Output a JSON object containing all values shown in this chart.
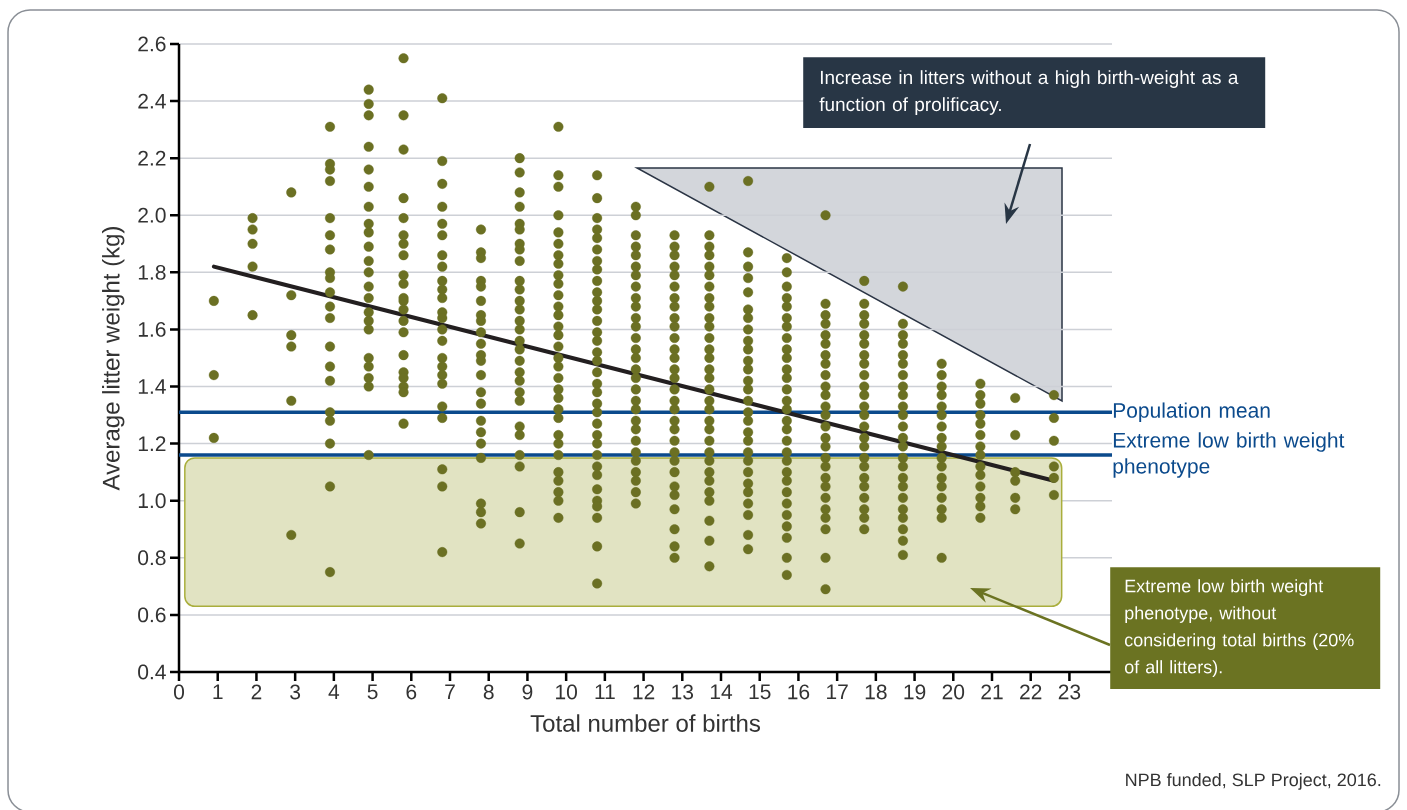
{
  "chart_data": {
    "type": "scatter",
    "xlabel": "Total number of births",
    "ylabel": "Average litter weight (kg)",
    "xlim": [
      0,
      24.1
    ],
    "ylim": [
      0.4,
      2.6
    ],
    "xticks": [
      0,
      1,
      2,
      3,
      4,
      5,
      6,
      7,
      8,
      9,
      10,
      11,
      12,
      13,
      14,
      15,
      16,
      17,
      18,
      19,
      20,
      21,
      22,
      23
    ],
    "yticks": [
      0.4,
      0.6,
      0.8,
      {
        "value": 1,
        "label": "1.0"
      },
      1.2,
      1.4,
      1.6,
      1.8,
      {
        "value": 2,
        "label": "2.0"
      },
      2.2,
      2.4,
      2.6
    ],
    "grid": "y",
    "ref_lines": [
      {
        "axis": "y",
        "value": 1.31,
        "label": "Population mean",
        "color": "#0b4a8c"
      },
      {
        "axis": "y",
        "value": 1.16,
        "label": "Extreme low birth weight phenotype",
        "color": "#0b4a8c"
      }
    ],
    "bands": [
      {
        "axis": "y",
        "from": 0.63,
        "to": 1.15,
        "color": "#e1e3c2"
      }
    ],
    "annotations": [
      "Increase in litters without a high birth-weight as a function of prolificacy.",
      "Extreme low birth weight phenotype, without considering total births (20% of all litters).",
      "NPB funded, SLP Project, 2016."
    ],
    "series": [
      {
        "type": "scatter",
        "marker": "circle",
        "color": "#6b7023",
        "x": [
          0.9,
          0.9,
          0.9,
          1.9,
          1.9,
          1.9,
          1.9,
          1.9,
          2.9,
          2.9,
          2.9,
          2.9,
          2.9,
          2.9,
          3.9,
          3.9,
          3.9,
          3.9,
          3.9,
          3.9,
          3.9,
          3.9,
          3.9,
          3.9,
          3.9,
          3.9,
          3.9,
          3.9,
          3.9,
          3.9,
          3.9,
          3.9,
          3.9,
          3.9,
          4.9,
          4.9,
          4.9,
          4.9,
          4.9,
          4.9,
          4.9,
          4.9,
          4.9,
          4.9,
          4.9,
          4.9,
          4.9,
          4.9,
          4.9,
          4.9,
          4.9,
          4.9,
          4.9,
          4.9,
          4.9,
          4.9,
          5.8,
          5.8,
          5.8,
          5.8,
          5.8,
          5.8,
          5.8,
          5.8,
          5.8,
          5.8,
          5.8,
          5.8,
          5.8,
          5.8,
          5.8,
          5.8,
          5.8,
          5.8,
          5.8,
          5.8,
          5.8,
          6.8,
          6.8,
          6.8,
          6.8,
          6.8,
          6.8,
          6.8,
          6.8,
          6.8,
          6.8,
          6.8,
          6.8,
          6.8,
          6.8,
          6.8,
          6.8,
          6.8,
          6.8,
          6.8,
          6.8,
          6.8,
          6.8,
          6.8,
          6.8,
          7.8,
          7.8,
          7.8,
          7.8,
          7.8,
          7.8,
          7.8,
          7.8,
          7.8,
          7.8,
          7.8,
          7.8,
          7.8,
          7.8,
          7.8,
          7.8,
          7.8,
          7.8,
          7.8,
          7.8,
          7.8,
          7.8,
          8.8,
          8.8,
          8.8,
          8.8,
          8.8,
          8.8,
          8.8,
          8.8,
          8.8,
          8.8,
          8.8,
          8.8,
          8.8,
          8.8,
          8.8,
          8.8,
          8.8,
          8.8,
          8.8,
          8.8,
          8.8,
          8.8,
          8.8,
          8.8,
          8.8,
          8.8,
          8.8,
          8.8,
          9.8,
          9.8,
          9.8,
          9.8,
          9.8,
          9.8,
          9.8,
          9.8,
          9.8,
          9.8,
          9.8,
          9.8,
          9.8,
          9.8,
          9.8,
          9.8,
          9.8,
          9.8,
          9.8,
          9.8,
          9.8,
          9.8,
          9.8,
          9.8,
          9.8,
          9.8,
          9.8,
          9.8,
          9.8,
          9.8,
          9.8,
          10.8,
          10.8,
          10.8,
          10.8,
          10.8,
          10.8,
          10.8,
          10.8,
          10.8,
          10.8,
          10.8,
          10.8,
          10.8,
          10.8,
          10.8,
          10.8,
          10.8,
          10.8,
          10.8,
          10.8,
          10.8,
          10.8,
          10.8,
          10.8,
          10.8,
          10.8,
          10.8,
          10.8,
          10.8,
          10.8,
          10.8,
          10.8,
          10.8,
          10.8,
          11.8,
          11.8,
          11.8,
          11.8,
          11.8,
          11.8,
          11.8,
          11.8,
          11.8,
          11.8,
          11.8,
          11.8,
          11.8,
          11.8,
          11.8,
          11.8,
          11.8,
          11.8,
          11.8,
          11.8,
          11.8,
          11.8,
          11.8,
          11.8,
          11.8,
          11.8,
          11.8,
          11.8,
          11.8,
          12.8,
          12.8,
          12.8,
          12.8,
          12.8,
          12.8,
          12.8,
          12.8,
          12.8,
          12.8,
          12.8,
          12.8,
          12.8,
          12.8,
          12.8,
          12.8,
          12.8,
          12.8,
          12.8,
          12.8,
          12.8,
          12.8,
          12.8,
          12.8,
          12.8,
          12.8,
          12.8,
          12.8,
          12.8,
          12.8,
          13.7,
          13.7,
          13.7,
          13.7,
          13.7,
          13.7,
          13.7,
          13.7,
          13.7,
          13.7,
          13.7,
          13.7,
          13.7,
          13.7,
          13.7,
          13.7,
          13.7,
          13.7,
          13.7,
          13.7,
          13.7,
          13.7,
          13.7,
          13.7,
          13.7,
          13.7,
          13.7,
          13.7,
          13.7,
          13.7,
          13.7,
          14.7,
          14.7,
          14.7,
          14.7,
          14.7,
          14.7,
          14.7,
          14.7,
          14.7,
          14.7,
          14.7,
          14.7,
          14.7,
          14.7,
          14.7,
          14.7,
          14.7,
          14.7,
          14.7,
          14.7,
          14.7,
          14.7,
          14.7,
          14.7,
          14.7,
          14.7,
          14.7,
          14.7,
          15.7,
          15.7,
          15.7,
          15.7,
          15.7,
          15.7,
          15.7,
          15.7,
          15.7,
          15.7,
          15.7,
          15.7,
          15.7,
          15.7,
          15.7,
          15.7,
          15.7,
          15.7,
          15.7,
          15.7,
          15.7,
          15.7,
          15.7,
          15.7,
          15.7,
          15.7,
          15.7,
          15.7,
          15.7,
          16.7,
          16.7,
          16.7,
          16.7,
          16.7,
          16.7,
          16.7,
          16.7,
          16.7,
          16.7,
          16.7,
          16.7,
          16.7,
          16.7,
          16.7,
          16.7,
          16.7,
          16.7,
          16.7,
          16.7,
          16.7,
          16.7,
          16.7,
          16.7,
          16.7,
          16.7,
          17.7,
          17.7,
          17.7,
          17.7,
          17.7,
          17.7,
          17.7,
          17.7,
          17.7,
          17.7,
          17.7,
          17.7,
          17.7,
          17.7,
          17.7,
          17.7,
          17.7,
          17.7,
          17.7,
          17.7,
          17.7,
          17.7,
          17.7,
          17.7,
          18.7,
          18.7,
          18.7,
          18.7,
          18.7,
          18.7,
          18.7,
          18.7,
          18.7,
          18.7,
          18.7,
          18.7,
          18.7,
          18.7,
          18.7,
          18.7,
          18.7,
          18.7,
          18.7,
          18.7,
          18.7,
          18.7,
          18.7,
          18.7,
          19.7,
          19.7,
          19.7,
          19.7,
          19.7,
          19.7,
          19.7,
          19.7,
          19.7,
          19.7,
          19.7,
          19.7,
          19.7,
          19.7,
          19.7,
          19.7,
          19.7,
          20.7,
          20.7,
          20.7,
          20.7,
          20.7,
          20.7,
          20.7,
          20.7,
          20.7,
          20.7,
          20.7,
          20.7,
          20.7,
          20.7,
          21.6,
          21.6,
          21.6,
          21.6,
          21.6,
          21.6,
          22.6,
          22.6,
          22.6,
          22.6,
          22.6,
          22.6
        ],
        "values": [
          1.7,
          1.44,
          1.22,
          1.99,
          1.95,
          1.9,
          1.82,
          1.65,
          2.08,
          1.72,
          1.58,
          1.54,
          1.35,
          0.88,
          2.31,
          2.18,
          2.16,
          2.12,
          1.99,
          1.93,
          1.88,
          1.8,
          1.78,
          1.73,
          1.68,
          1.64,
          1.54,
          1.47,
          1.42,
          1.31,
          1.28,
          1.2,
          1.05,
          0.75,
          2.44,
          2.39,
          2.35,
          2.24,
          2.16,
          2.1,
          2.03,
          1.97,
          1.94,
          1.89,
          1.84,
          1.8,
          1.75,
          1.71,
          1.66,
          1.63,
          1.6,
          1.5,
          1.47,
          1.43,
          1.4,
          1.16,
          2.55,
          2.35,
          2.23,
          2.06,
          1.99,
          1.93,
          1.9,
          1.86,
          1.79,
          1.76,
          1.71,
          1.7,
          1.67,
          1.63,
          1.59,
          1.51,
          1.45,
          1.43,
          1.4,
          1.38,
          1.27,
          2.41,
          2.19,
          2.11,
          2.03,
          1.97,
          1.93,
          1.86,
          1.82,
          1.77,
          1.74,
          1.71,
          1.66,
          1.64,
          1.6,
          1.56,
          1.5,
          1.47,
          1.44,
          1.41,
          1.33,
          1.29,
          1.11,
          1.05,
          0.82,
          1.95,
          1.87,
          1.85,
          1.77,
          1.75,
          1.7,
          1.65,
          1.63,
          1.59,
          1.55,
          1.51,
          1.49,
          1.44,
          1.38,
          1.34,
          1.28,
          1.24,
          1.2,
          1.15,
          0.99,
          0.96,
          0.92,
          2.2,
          2.15,
          2.08,
          2.03,
          1.97,
          1.95,
          1.9,
          1.88,
          1.84,
          1.77,
          1.74,
          1.7,
          1.67,
          1.63,
          1.6,
          1.56,
          1.53,
          1.49,
          1.45,
          1.42,
          1.38,
          1.35,
          1.26,
          1.23,
          1.16,
          1.12,
          0.96,
          0.85,
          2.31,
          2.14,
          2.1,
          2.0,
          1.94,
          1.9,
          1.86,
          1.83,
          1.79,
          1.76,
          1.72,
          1.68,
          1.65,
          1.61,
          1.58,
          1.54,
          1.5,
          1.47,
          1.43,
          1.39,
          1.36,
          1.32,
          1.29,
          1.23,
          1.2,
          1.16,
          1.1,
          1.07,
          1.03,
          1.0,
          0.94,
          2.14,
          2.06,
          1.99,
          1.95,
          1.92,
          1.88,
          1.84,
          1.81,
          1.77,
          1.73,
          1.7,
          1.67,
          1.63,
          1.59,
          1.56,
          1.52,
          1.49,
          1.45,
          1.41,
          1.38,
          1.34,
          1.31,
          1.27,
          1.23,
          1.2,
          1.16,
          1.12,
          1.09,
          1.04,
          1.0,
          0.98,
          0.94,
          0.84,
          0.71,
          2.03,
          2.0,
          1.93,
          1.89,
          1.86,
          1.82,
          1.79,
          1.75,
          1.71,
          1.68,
          1.64,
          1.61,
          1.57,
          1.53,
          1.5,
          1.46,
          1.43,
          1.39,
          1.35,
          1.32,
          1.28,
          1.25,
          1.21,
          1.17,
          1.14,
          1.1,
          1.07,
          1.03,
          0.99,
          1.93,
          1.89,
          1.86,
          1.82,
          1.79,
          1.75,
          1.71,
          1.68,
          1.64,
          1.61,
          1.57,
          1.53,
          1.5,
          1.46,
          1.43,
          1.39,
          1.35,
          1.32,
          1.28,
          1.25,
          1.21,
          1.17,
          1.14,
          1.1,
          1.05,
          1.02,
          0.97,
          0.9,
          0.84,
          0.8,
          2.1,
          1.93,
          1.89,
          1.86,
          1.82,
          1.79,
          1.75,
          1.71,
          1.68,
          1.64,
          1.61,
          1.57,
          1.53,
          1.5,
          1.46,
          1.43,
          1.39,
          1.35,
          1.32,
          1.28,
          1.25,
          1.21,
          1.17,
          1.14,
          1.1,
          1.07,
          1.03,
          1.0,
          0.93,
          0.86,
          0.77,
          2.12,
          1.87,
          1.82,
          1.78,
          1.73,
          1.67,
          1.64,
          1.6,
          1.56,
          1.53,
          1.49,
          1.46,
          1.42,
          1.39,
          1.35,
          1.31,
          1.28,
          1.24,
          1.21,
          1.17,
          1.14,
          1.1,
          1.06,
          1.03,
          0.99,
          0.95,
          0.88,
          0.83,
          1.85,
          1.8,
          1.75,
          1.71,
          1.68,
          1.64,
          1.61,
          1.57,
          1.53,
          1.5,
          1.46,
          1.43,
          1.39,
          1.35,
          1.32,
          1.28,
          1.25,
          1.21,
          1.17,
          1.14,
          1.1,
          1.07,
          1.03,
          0.99,
          0.95,
          0.91,
          0.87,
          0.8,
          0.74,
          2.0,
          1.69,
          1.65,
          1.62,
          1.58,
          1.55,
          1.51,
          1.48,
          1.44,
          1.4,
          1.37,
          1.33,
          1.3,
          1.26,
          1.22,
          1.19,
          1.15,
          1.12,
          1.08,
          1.05,
          1.01,
          0.97,
          0.94,
          0.9,
          0.8,
          0.69,
          1.77,
          1.69,
          1.65,
          1.62,
          1.58,
          1.55,
          1.51,
          1.48,
          1.44,
          1.4,
          1.37,
          1.33,
          1.3,
          1.26,
          1.22,
          1.19,
          1.15,
          1.12,
          1.08,
          1.05,
          1.01,
          0.97,
          0.94,
          0.9,
          1.75,
          1.62,
          1.58,
          1.55,
          1.51,
          1.48,
          1.44,
          1.4,
          1.37,
          1.33,
          1.3,
          1.26,
          1.22,
          1.19,
          1.15,
          1.12,
          1.08,
          1.05,
          1.01,
          0.97,
          0.94,
          0.9,
          0.86,
          0.81,
          1.48,
          1.44,
          1.4,
          1.37,
          1.33,
          1.3,
          1.26,
          1.22,
          1.19,
          1.15,
          1.12,
          1.08,
          1.05,
          1.01,
          0.97,
          0.94,
          0.8,
          1.41,
          1.37,
          1.34,
          1.3,
          1.27,
          1.23,
          1.19,
          1.16,
          1.12,
          1.09,
          1.05,
          1.01,
          0.98,
          0.94,
          1.36,
          1.23,
          1.1,
          1.07,
          1.01,
          0.97,
          1.37,
          1.29,
          1.21,
          1.12,
          1.08,
          1.02
        ]
      },
      {
        "type": "line",
        "color": "#231f20",
        "x": [
          0.9,
          22.6
        ],
        "values": [
          1.82,
          1.07
        ]
      }
    ]
  }
}
